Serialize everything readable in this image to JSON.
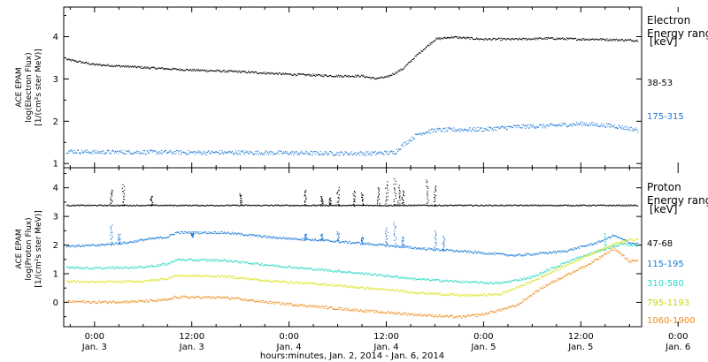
{
  "chart_data": [
    {
      "type": "scatter",
      "panel": "electron",
      "ylabel": [
        "ACE EPAM",
        "log(Electron Flux)",
        "[1/(cm²s ster MeV)]"
      ],
      "ylim": [
        0.9,
        4.7
      ],
      "yticks": [
        1,
        2,
        3,
        4
      ],
      "side_title": [
        "Electron",
        "Energy ranges"
      ],
      "unit": "[keV]",
      "series": [
        {
          "name": "38-53",
          "color": "#000000",
          "noise": 0.025,
          "points": [
            [
              -3.5,
              3.47
            ],
            [
              0,
              3.35
            ],
            [
              6,
              3.28
            ],
            [
              12,
              3.22
            ],
            [
              18,
              3.18
            ],
            [
              24,
              3.12
            ],
            [
              30,
              3.08
            ],
            [
              33,
              3.08
            ],
            [
              34.5,
              3.02
            ],
            [
              36,
              3.05
            ],
            [
              38,
              3.25
            ],
            [
              40,
              3.62
            ],
            [
              42,
              3.95
            ],
            [
              44,
              4.0
            ],
            [
              48,
              3.95
            ],
            [
              52,
              3.95
            ],
            [
              56,
              3.97
            ],
            [
              60,
              3.95
            ],
            [
              62,
              3.95
            ],
            [
              67,
              3.92
            ]
          ]
        },
        {
          "name": "175-315",
          "color": "#1a78d6",
          "noise": 0.05,
          "points": [
            [
              -3.5,
              1.3
            ],
            [
              0,
              1.28
            ],
            [
              6,
              1.28
            ],
            [
              12,
              1.27
            ],
            [
              18,
              1.27
            ],
            [
              24,
              1.26
            ],
            [
              30,
              1.25
            ],
            [
              34,
              1.25
            ],
            [
              37,
              1.27
            ],
            [
              38,
              1.45
            ],
            [
              40,
              1.72
            ],
            [
              42,
              1.8
            ],
            [
              48,
              1.82
            ],
            [
              52,
              1.88
            ],
            [
              56,
              1.9
            ],
            [
              60,
              1.95
            ],
            [
              64,
              1.9
            ],
            [
              67,
              1.8
            ]
          ]
        }
      ]
    },
    {
      "type": "scatter",
      "panel": "proton",
      "ylabel": [
        "ACE EPAM",
        "log(Proton Flux)",
        "[1/(cm²s ster MeV)]"
      ],
      "ylim": [
        -0.85,
        4.7
      ],
      "yticks": [
        0,
        1,
        2,
        3,
        4
      ],
      "side_title": [
        "Proton",
        "Energy ranges"
      ],
      "unit": "[keV]",
      "series": [
        {
          "name": "47-68",
          "color": "#000000",
          "noise": 0.02,
          "spikes": [
            [
              2,
              3.95
            ],
            [
              3.5,
              4.1
            ],
            [
              7,
              3.7
            ],
            [
              18,
              3.8
            ],
            [
              26,
              3.95
            ],
            [
              28,
              3.7
            ],
            [
              29,
              3.65
            ],
            [
              30,
              4.0
            ],
            [
              32,
              3.9
            ],
            [
              33,
              3.8
            ],
            [
              35,
              4.05
            ],
            [
              36,
              4.2
            ],
            [
              37,
              4.3
            ],
            [
              37.5,
              4.1
            ],
            [
              38,
              3.9
            ],
            [
              41,
              4.3
            ],
            [
              42,
              4.1
            ]
          ],
          "points": [
            [
              -3.5,
              3.4
            ],
            [
              10,
              3.4
            ],
            [
              30,
              3.4
            ],
            [
              45,
              3.4
            ],
            [
              60,
              3.4
            ],
            [
              67,
              3.4
            ]
          ]
        },
        {
          "name": "115-195",
          "color": "#1a78d6",
          "noise": 0.04,
          "spikes": [
            [
              2,
              2.7
            ],
            [
              3,
              2.4
            ],
            [
              12,
              2.3
            ],
            [
              26,
              2.4
            ],
            [
              28,
              2.4
            ],
            [
              30,
              2.5
            ],
            [
              33,
              2.3
            ],
            [
              36,
              2.6
            ],
            [
              37,
              2.8
            ],
            [
              38,
              2.3
            ],
            [
              42,
              2.5
            ],
            [
              43,
              2.3
            ]
          ],
          "points": [
            [
              -3.5,
              1.98
            ],
            [
              0,
              2.0
            ],
            [
              4,
              2.1
            ],
            [
              6,
              2.2
            ],
            [
              9,
              2.3
            ],
            [
              10,
              2.45
            ],
            [
              16,
              2.45
            ],
            [
              22,
              2.28
            ],
            [
              28,
              2.18
            ],
            [
              34,
              2.05
            ],
            [
              40,
              1.9
            ],
            [
              46,
              1.78
            ],
            [
              52,
              1.65
            ],
            [
              58,
              1.8
            ],
            [
              62,
              2.1
            ],
            [
              64,
              2.35
            ],
            [
              66,
              2.1
            ],
            [
              67,
              2.05
            ]
          ]
        },
        {
          "name": "310-580",
          "color": "#2ad6c6",
          "noise": 0.04,
          "spikes": [
            [
              63,
              2.4
            ]
          ],
          "points": [
            [
              -3.5,
              1.25
            ],
            [
              0,
              1.2
            ],
            [
              6,
              1.25
            ],
            [
              9,
              1.35
            ],
            [
              10,
              1.5
            ],
            [
              16,
              1.48
            ],
            [
              22,
              1.3
            ],
            [
              28,
              1.15
            ],
            [
              34,
              1.0
            ],
            [
              40,
              0.82
            ],
            [
              46,
              0.72
            ],
            [
              50,
              0.68
            ],
            [
              54,
              0.9
            ],
            [
              58,
              1.4
            ],
            [
              62,
              1.8
            ],
            [
              65,
              2.05
            ],
            [
              67,
              2.0
            ]
          ]
        },
        {
          "name": "795-1193",
          "color": "#d6e41a",
          "noise": 0.04,
          "points": [
            [
              -3.5,
              0.75
            ],
            [
              0,
              0.72
            ],
            [
              6,
              0.75
            ],
            [
              9,
              0.85
            ],
            [
              10,
              0.95
            ],
            [
              16,
              0.92
            ],
            [
              22,
              0.75
            ],
            [
              28,
              0.65
            ],
            [
              34,
              0.5
            ],
            [
              40,
              0.35
            ],
            [
              46,
              0.25
            ],
            [
              50,
              0.3
            ],
            [
              54,
              0.75
            ],
            [
              58,
              1.3
            ],
            [
              62,
              1.8
            ],
            [
              64,
              2.05
            ],
            [
              66,
              2.2
            ],
            [
              67,
              2.2
            ]
          ]
        },
        {
          "name": "1060-1900",
          "color": "#ee8a18",
          "noise": 0.045,
          "points": [
            [
              -3.5,
              0.05
            ],
            [
              0,
              0.02
            ],
            [
              6,
              0.05
            ],
            [
              9,
              0.1
            ],
            [
              10,
              0.2
            ],
            [
              16,
              0.18
            ],
            [
              22,
              0.0
            ],
            [
              28,
              -0.15
            ],
            [
              34,
              -0.3
            ],
            [
              40,
              -0.42
            ],
            [
              45,
              -0.5
            ],
            [
              48,
              -0.4
            ],
            [
              52,
              -0.1
            ],
            [
              55,
              0.5
            ],
            [
              58,
              0.95
            ],
            [
              61,
              1.35
            ],
            [
              63,
              1.7
            ],
            [
              64,
              1.9
            ],
            [
              66,
              1.45
            ],
            [
              67,
              1.45
            ]
          ]
        }
      ]
    }
  ],
  "x_axis": {
    "xlim": [
      -3.8,
      67.5
    ],
    "ticks": [
      {
        "h": 0,
        "time": "0:00",
        "date": "Jan. 3"
      },
      {
        "h": 12,
        "time": "12:00",
        "date": "Jan. 3"
      },
      {
        "h": 24,
        "time": "0:00",
        "date": "Jan. 4"
      },
      {
        "h": 36,
        "time": "12:00",
        "date": "Jan. 4"
      },
      {
        "h": 48,
        "time": "0:00",
        "date": "Jan. 5"
      },
      {
        "h": 60,
        "time": "12:00",
        "date": "Jan. 5"
      },
      {
        "h": 72,
        "time": "0:00",
        "date": "Jan. 6"
      }
    ],
    "xlabel": "hours:minutes, Jan.  2, 2014 - Jan.  6, 2014"
  },
  "colors": {
    "axis": "#000000",
    "background": "#ffffff"
  }
}
